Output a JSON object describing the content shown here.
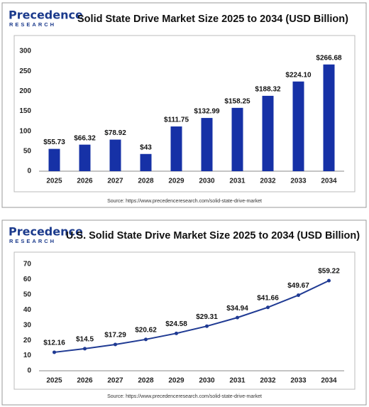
{
  "chart_data": [
    {
      "type": "bar",
      "logo": {
        "name": "Precedence",
        "tagline": "RESEARCH"
      },
      "title": "Solid State Drive Market Size 2025 to 2034 (USD Billion)",
      "categories": [
        "2025",
        "2026",
        "2027",
        "2028",
        "2029",
        "2030",
        "2031",
        "2032",
        "2033",
        "2034"
      ],
      "values": [
        55.73,
        66.32,
        78.92,
        43,
        111.75,
        132.99,
        158.25,
        188.32,
        224.1,
        266.68
      ],
      "value_labels": [
        "$55.73",
        "$66.32",
        "$78.92",
        "$43",
        "$111.75",
        "$132.99",
        "$158.25",
        "$188.32",
        "$224.10",
        "$266.68"
      ],
      "color": "#1631a6",
      "ylim": [
        0,
        300
      ],
      "yticks": [
        0,
        50,
        100,
        150,
        200,
        250,
        300
      ],
      "source": "Source: https://www.precedenceresearch.com/solid-state-drive-market"
    },
    {
      "type": "line",
      "logo": {
        "name": "Precedence",
        "tagline": "RESEARCH"
      },
      "title": "U.S. Solid State Drive Market Size 2025 to 2034 (USD Billion)",
      "categories": [
        "2025",
        "2026",
        "2027",
        "2028",
        "2029",
        "2030",
        "2031",
        "2032",
        "2033",
        "2034"
      ],
      "values": [
        12.16,
        14.5,
        17.29,
        20.62,
        24.58,
        29.31,
        34.94,
        41.66,
        49.67,
        59.22
      ],
      "value_labels": [
        "$12.16",
        "$14.5",
        "$17.29",
        "$20.62",
        "$24.58",
        "$29.31",
        "$34.94",
        "$41.66",
        "$49.67",
        "$59.22"
      ],
      "color": "#1f3a93",
      "ylim": [
        0,
        70
      ],
      "yticks": [
        0,
        10,
        20,
        30,
        40,
        50,
        60,
        70
      ],
      "source": "Source: https://www.precedenceresearch.com/solid-state-drive-market"
    }
  ]
}
